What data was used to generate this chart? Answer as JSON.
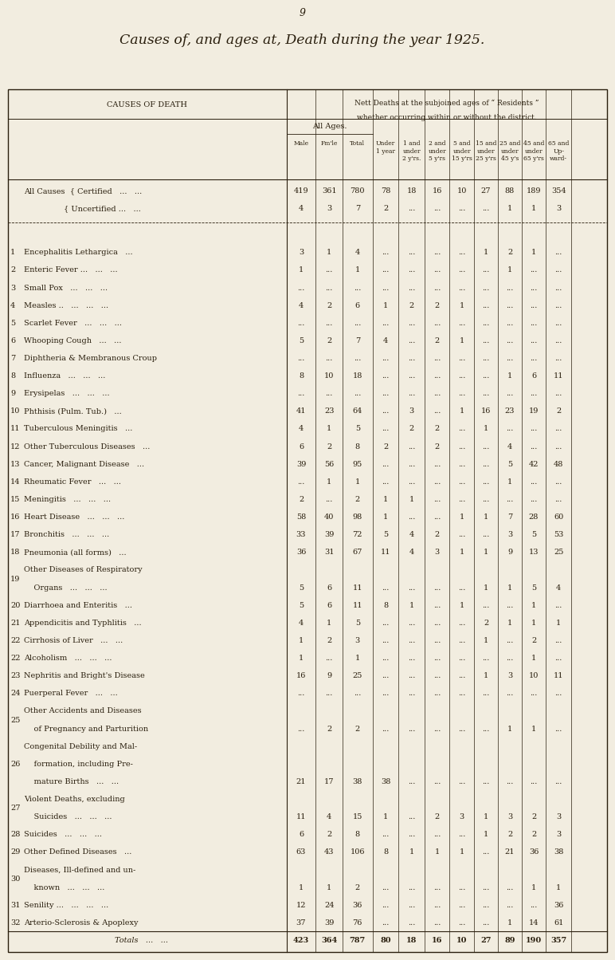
{
  "page_number": "9",
  "title": "Causes of, and ages at, Death during the year 1925.",
  "subtitle1": "Nett Deaths at the subjoined ages of “ Residents ”",
  "subtitle2": "whether occurring within or without the district.",
  "col_header_left": "CAUSES OF DEATH",
  "col_header_allages": "All Ages.",
  "background_color": "#f2ede0",
  "text_color": "#2a1f0e",
  "rows": [
    {
      "num": "",
      "label1": "All Causes  { Certified   ...   ...",
      "label2": "",
      "label3": "",
      "male": "419",
      "fmle": "361",
      "total": "780",
      "u1": "78",
      "c1": "18",
      "c2": "16",
      "c5": "10",
      "c15": "27",
      "c25": "88",
      "c45": "189",
      "c65": "354"
    },
    {
      "num": "",
      "label1": "                { Uncertified ...   ...",
      "label2": "",
      "label3": "",
      "male": "4",
      "fmle": "3",
      "total": "7",
      "u1": "2",
      "c1": "...",
      "c2": "...",
      "c5": "...",
      "c15": "...",
      "c25": "1",
      "c45": "1",
      "c65": "3"
    },
    {
      "num": "1",
      "label1": "Encephalitis Lethargica   ...",
      "label2": "",
      "label3": "",
      "male": "3",
      "fmle": "1",
      "total": "4",
      "u1": "...",
      "c1": "...",
      "c2": "...",
      "c5": "...",
      "c15": "1",
      "c25": "2",
      "c45": "1",
      "c65": "..."
    },
    {
      "num": "2",
      "label1": "Enteric Fever ...   ...   ...",
      "label2": "",
      "label3": "",
      "male": "1",
      "fmle": "...",
      "total": "1",
      "u1": "...",
      "c1": "...",
      "c2": "...",
      "c5": "...",
      "c15": "...",
      "c25": "1",
      "c45": "...",
      "c65": "..."
    },
    {
      "num": "3",
      "label1": "Small Pox   ...   ...   ...",
      "label2": "",
      "label3": "",
      "male": "...",
      "fmle": "...",
      "total": "...",
      "u1": "...",
      "c1": "...",
      "c2": "...",
      "c5": "...",
      "c15": "...",
      "c25": "...",
      "c45": "...",
      "c65": "..."
    },
    {
      "num": "4",
      "label1": "Measles ..   ...   ...   ...",
      "label2": "",
      "label3": "",
      "male": "4",
      "fmle": "2",
      "total": "6",
      "u1": "1",
      "c1": "2",
      "c2": "2",
      "c5": "1",
      "c15": "...",
      "c25": "...",
      "c45": "...",
      "c65": "..."
    },
    {
      "num": "5",
      "label1": "Scarlet Fever   ...   ...   ...",
      "label2": "",
      "label3": "",
      "male": "...",
      "fmle": "...",
      "total": "...",
      "u1": "...",
      "c1": "...",
      "c2": "...",
      "c5": "...",
      "c15": "...",
      "c25": "...",
      "c45": "...",
      "c65": "..."
    },
    {
      "num": "6",
      "label1": "Whooping Cough   ...   ...",
      "label2": "",
      "label3": "",
      "male": "5",
      "fmle": "2",
      "total": "7",
      "u1": "4",
      "c1": "...",
      "c2": "2",
      "c5": "1",
      "c15": "...",
      "c25": "...",
      "c45": "...",
      "c65": "..."
    },
    {
      "num": "7",
      "label1": "Diphtheria & Membranous Croup",
      "label2": "",
      "label3": "",
      "male": "...",
      "fmle": "...",
      "total": "...",
      "u1": "...",
      "c1": "...",
      "c2": "...",
      "c5": "...",
      "c15": "...",
      "c25": "...",
      "c45": "...",
      "c65": "..."
    },
    {
      "num": "8",
      "label1": "Influenza   ...   ...   ...",
      "label2": "",
      "label3": "",
      "male": "8",
      "fmle": "10",
      "total": "18",
      "u1": "...",
      "c1": "...",
      "c2": "...",
      "c5": "...",
      "c15": "...",
      "c25": "1",
      "c45": "6",
      "c65": "11"
    },
    {
      "num": "9",
      "label1": "Erysipelas   ...   ...   ...",
      "label2": "",
      "label3": "",
      "male": "...",
      "fmle": "...",
      "total": "...",
      "u1": "...",
      "c1": "...",
      "c2": "...",
      "c5": "...",
      "c15": "...",
      "c25": "...",
      "c45": "...",
      "c65": "..."
    },
    {
      "num": "10",
      "label1": "Phthisis (Pulm. Tub.)   ...",
      "label2": "",
      "label3": "",
      "male": "41",
      "fmle": "23",
      "total": "64",
      "u1": "...",
      "c1": "3",
      "c2": "...",
      "c5": "1",
      "c15": "16",
      "c25": "23",
      "c45": "19",
      "c65": "2"
    },
    {
      "num": "11",
      "label1": "Tuberculous Meningitis   ...",
      "label2": "",
      "label3": "",
      "male": "4",
      "fmle": "1",
      "total": "5",
      "u1": "...",
      "c1": "2",
      "c2": "2",
      "c5": "...",
      "c15": "1",
      "c25": "...",
      "c45": "...",
      "c65": "..."
    },
    {
      "num": "12",
      "label1": "Other Tuberculous Diseases   ...",
      "label2": "",
      "label3": "",
      "male": "6",
      "fmle": "2",
      "total": "8",
      "u1": "2",
      "c1": "...",
      "c2": "2",
      "c5": "...",
      "c15": "...",
      "c25": "4",
      "c45": "...",
      "c65": "..."
    },
    {
      "num": "13",
      "label1": "Cancer, Malignant Disease   ...",
      "label2": "",
      "label3": "",
      "male": "39",
      "fmle": "56",
      "total": "95",
      "u1": "...",
      "c1": "...",
      "c2": "...",
      "c5": "...",
      "c15": "...",
      "c25": "5",
      "c45": "42",
      "c65": "48"
    },
    {
      "num": "14",
      "label1": "Rheumatic Fever   ...   ...",
      "label2": "",
      "label3": "",
      "male": "...",
      "fmle": "1",
      "total": "1",
      "u1": "...",
      "c1": "...",
      "c2": "...",
      "c5": "...",
      "c15": "...",
      "c25": "1",
      "c45": "...",
      "c65": "..."
    },
    {
      "num": "15",
      "label1": "Meningitis   ...   ...   ...",
      "label2": "",
      "label3": "",
      "male": "2",
      "fmle": "...",
      "total": "2",
      "u1": "1",
      "c1": "1",
      "c2": "...",
      "c5": "...",
      "c15": "...",
      "c25": "...",
      "c45": "...",
      "c65": "..."
    },
    {
      "num": "16",
      "label1": "Heart Disease   ...   ...   ...",
      "label2": "",
      "label3": "",
      "male": "58",
      "fmle": "40",
      "total": "98",
      "u1": "1",
      "c1": "...",
      "c2": "...",
      "c5": "1",
      "c15": "1",
      "c25": "7",
      "c45": "28",
      "c65": "60"
    },
    {
      "num": "17",
      "label1": "Bronchitis   ...   ...   ...",
      "label2": "",
      "label3": "",
      "male": "33",
      "fmle": "39",
      "total": "72",
      "u1": "5",
      "c1": "4",
      "c2": "2",
      "c5": "...",
      "c15": "...",
      "c25": "3",
      "c45": "5",
      "c65": "53"
    },
    {
      "num": "18",
      "label1": "Pneumonia (all forms)   ...",
      "label2": "",
      "label3": "",
      "male": "36",
      "fmle": "31",
      "total": "67",
      "u1": "11",
      "c1": "4",
      "c2": "3",
      "c5": "1",
      "c15": "1",
      "c25": "9",
      "c45": "13",
      "c65": "25"
    },
    {
      "num": "19",
      "label1": "Other Diseases of Respiratory",
      "label2": "    Organs   ...   ...   ...",
      "label3": "",
      "male": "5",
      "fmle": "6",
      "total": "11",
      "u1": "...",
      "c1": "...",
      "c2": "...",
      "c5": "...",
      "c15": "1",
      "c25": "1",
      "c45": "5",
      "c65": "4"
    },
    {
      "num": "20",
      "label1": "Diarrhoea and Enteritis   ...",
      "label2": "",
      "label3": "",
      "male": "5",
      "fmle": "6",
      "total": "11",
      "u1": "8",
      "c1": "1",
      "c2": "...",
      "c5": "1",
      "c15": "...",
      "c25": "...",
      "c45": "1",
      "c65": "..."
    },
    {
      "num": "21",
      "label1": "Appendicitis and Typhlitis   ...",
      "label2": "",
      "label3": "",
      "male": "4",
      "fmle": "1",
      "total": "5",
      "u1": "...",
      "c1": "...",
      "c2": "...",
      "c5": "...",
      "c15": "2",
      "c25": "1",
      "c45": "1",
      "c65": "1"
    },
    {
      "num": "22",
      "label1": "Cirrhosis of Liver   ...   ...",
      "label2": "",
      "label3": "",
      "male": "1",
      "fmle": "2",
      "total": "3",
      "u1": "...",
      "c1": "...",
      "c2": "...",
      "c5": "...",
      "c15": "1",
      "c25": "...",
      "c45": "2",
      "c65": "..."
    },
    {
      "num": "22",
      "label1": "Alcoholism   ...   ...   ...",
      "label2": "",
      "label3": "",
      "male": "1",
      "fmle": "...",
      "total": "1",
      "u1": "...",
      "c1": "...",
      "c2": "...",
      "c5": "...",
      "c15": "...",
      "c25": "...",
      "c45": "1",
      "c65": "..."
    },
    {
      "num": "23",
      "label1": "Nephritis and Bright's Disease",
      "label2": "",
      "label3": "",
      "male": "16",
      "fmle": "9",
      "total": "25",
      "u1": "...",
      "c1": "...",
      "c2": "...",
      "c5": "...",
      "c15": "1",
      "c25": "3",
      "c45": "10",
      "c65": "11"
    },
    {
      "num": "24",
      "label1": "Puerperal Fever   ...   ...",
      "label2": "",
      "label3": "",
      "male": "...",
      "fmle": "...",
      "total": "...",
      "u1": "...",
      "c1": "...",
      "c2": "...",
      "c5": "...",
      "c15": "...",
      "c25": "...",
      "c45": "...",
      "c65": "..."
    },
    {
      "num": "25",
      "label1": "Other Accidents and Diseases",
      "label2": "    of Pregnancy and Parturition",
      "label3": "",
      "male": "...",
      "fmle": "2",
      "total": "2",
      "u1": "...",
      "c1": "...",
      "c2": "...",
      "c5": "...",
      "c15": "...",
      "c25": "1",
      "c45": "1",
      "c65": "..."
    },
    {
      "num": "26",
      "label1": "Congenital Debility and Mal-",
      "label2": "    formation, including Pre-",
      "label3": "    mature Births   ...   ...",
      "male": "21",
      "fmle": "17",
      "total": "38",
      "u1": "38",
      "c1": "...",
      "c2": "...",
      "c5": "...",
      "c15": "...",
      "c25": "...",
      "c45": "...",
      "c65": "..."
    },
    {
      "num": "27",
      "label1": "Violent Deaths, excluding",
      "label2": "    Suicides   ...   ...   ...",
      "label3": "",
      "male": "11",
      "fmle": "4",
      "total": "15",
      "u1": "1",
      "c1": "...",
      "c2": "2",
      "c5": "3",
      "c15": "1",
      "c25": "3",
      "c45": "2",
      "c65": "3"
    },
    {
      "num": "28",
      "label1": "Suicides   ...   ...   ...",
      "label2": "",
      "label3": "",
      "male": "6",
      "fmle": "2",
      "total": "8",
      "u1": "...",
      "c1": "...",
      "c2": "...",
      "c5": "...",
      "c15": "1",
      "c25": "2",
      "c45": "2",
      "c65": "3"
    },
    {
      "num": "29",
      "label1": "Other Defined Diseases   ...",
      "label2": "",
      "label3": "",
      "male": "63",
      "fmle": "43",
      "total": "106",
      "u1": "8",
      "c1": "1",
      "c2": "1",
      "c5": "1",
      "c15": "...",
      "c25": "21",
      "c45": "36",
      "c65": "38"
    },
    {
      "num": "30",
      "label1": "Diseases, Ill-defined and un-",
      "label2": "    known   ...   ...   ...",
      "label3": "",
      "male": "1",
      "fmle": "1",
      "total": "2",
      "u1": "...",
      "c1": "...",
      "c2": "...",
      "c5": "...",
      "c15": "...",
      "c25": "...",
      "c45": "1",
      "c65": "1"
    },
    {
      "num": "31",
      "label1": "Senility ...   ...   ...   ...",
      "label2": "",
      "label3": "",
      "male": "12",
      "fmle": "24",
      "total": "36",
      "u1": "...",
      "c1": "...",
      "c2": "...",
      "c5": "...",
      "c15": "...",
      "c25": "...",
      "c45": "...",
      "c65": "36"
    },
    {
      "num": "32",
      "label1": "Arterio-Sclerosis & Apoplexy",
      "label2": "",
      "label3": "",
      "male": "37",
      "fmle": "39",
      "total": "76",
      "u1": "...",
      "c1": "...",
      "c2": "...",
      "c5": "...",
      "c15": "...",
      "c25": "1",
      "c45": "14",
      "c65": "61"
    },
    {
      "num": "T",
      "label1": "Totals   ...   ...",
      "label2": "",
      "label3": "",
      "male": "423",
      "fmle": "364",
      "total": "787",
      "u1": "80",
      "c1": "18",
      "c2": "16",
      "c5": "10",
      "c15": "27",
      "c25": "89",
      "c45": "190",
      "c65": "357"
    }
  ]
}
